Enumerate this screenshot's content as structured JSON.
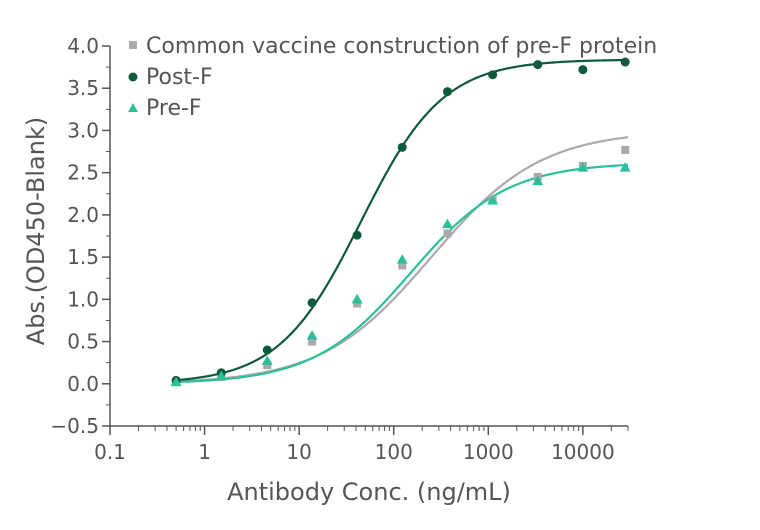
{
  "chart_data": {
    "type": "scatter",
    "title": "",
    "xlabel": "Antibody Conc. (ng/mL)",
    "ylabel": "Abs.(OD450-Blank)",
    "xscale": "log",
    "xlim": [
      0.1,
      30000
    ],
    "ylim": [
      -0.5,
      4.0
    ],
    "x_ticks": [
      0.1,
      1,
      10,
      100,
      1000,
      10000
    ],
    "x_tick_labels": [
      "0.1",
      "1",
      "10",
      "100",
      "1000",
      "10000"
    ],
    "y_ticks": [
      -0.5,
      0.0,
      0.5,
      1.0,
      1.5,
      2.0,
      2.5,
      3.0,
      3.5,
      4.0
    ],
    "y_tick_labels": [
      "−0.5",
      "0.0",
      "0.5",
      "1.0",
      "1.5",
      "2.0",
      "2.5",
      "3.0",
      "3.5",
      "4.0"
    ],
    "grid": false,
    "legend_position": "top",
    "series": [
      {
        "name": "Common vaccine construction of pre-F protein",
        "marker": "square",
        "color": "#aaaaaa",
        "x": [
          0.5,
          1.5,
          4.6,
          13.7,
          41,
          123,
          370,
          1111,
          3333,
          10000,
          28000
        ],
        "y": [
          0.02,
          0.08,
          0.22,
          0.5,
          0.95,
          1.4,
          1.78,
          2.18,
          2.45,
          2.58,
          2.77
        ],
        "fit": {
          "bottom": 0.0,
          "top": 3.0,
          "ec50": 250,
          "hill": 0.75
        }
      },
      {
        "name": "Post-F",
        "marker": "circle",
        "color": "#0f5a3c",
        "x": [
          0.5,
          1.5,
          4.6,
          13.7,
          41,
          123,
          370,
          1111,
          3333,
          10000,
          28000
        ],
        "y": [
          0.04,
          0.13,
          0.4,
          0.96,
          1.76,
          2.8,
          3.46,
          3.66,
          3.78,
          3.72,
          3.81
        ],
        "fit": {
          "bottom": 0.0,
          "top": 3.84,
          "ec50": 45,
          "hill": 1.0
        }
      },
      {
        "name": "Pre-F",
        "marker": "triangle",
        "color": "#2bbf9a",
        "x": [
          0.5,
          1.5,
          4.6,
          13.7,
          41,
          123,
          370,
          1111,
          3333,
          10000,
          28000
        ],
        "y": [
          0.02,
          0.09,
          0.27,
          0.57,
          1.0,
          1.47,
          1.89,
          2.17,
          2.4,
          2.56,
          2.56
        ],
        "fit": {
          "bottom": 0.0,
          "top": 2.62,
          "ec50": 150,
          "hill": 0.85
        }
      }
    ]
  }
}
